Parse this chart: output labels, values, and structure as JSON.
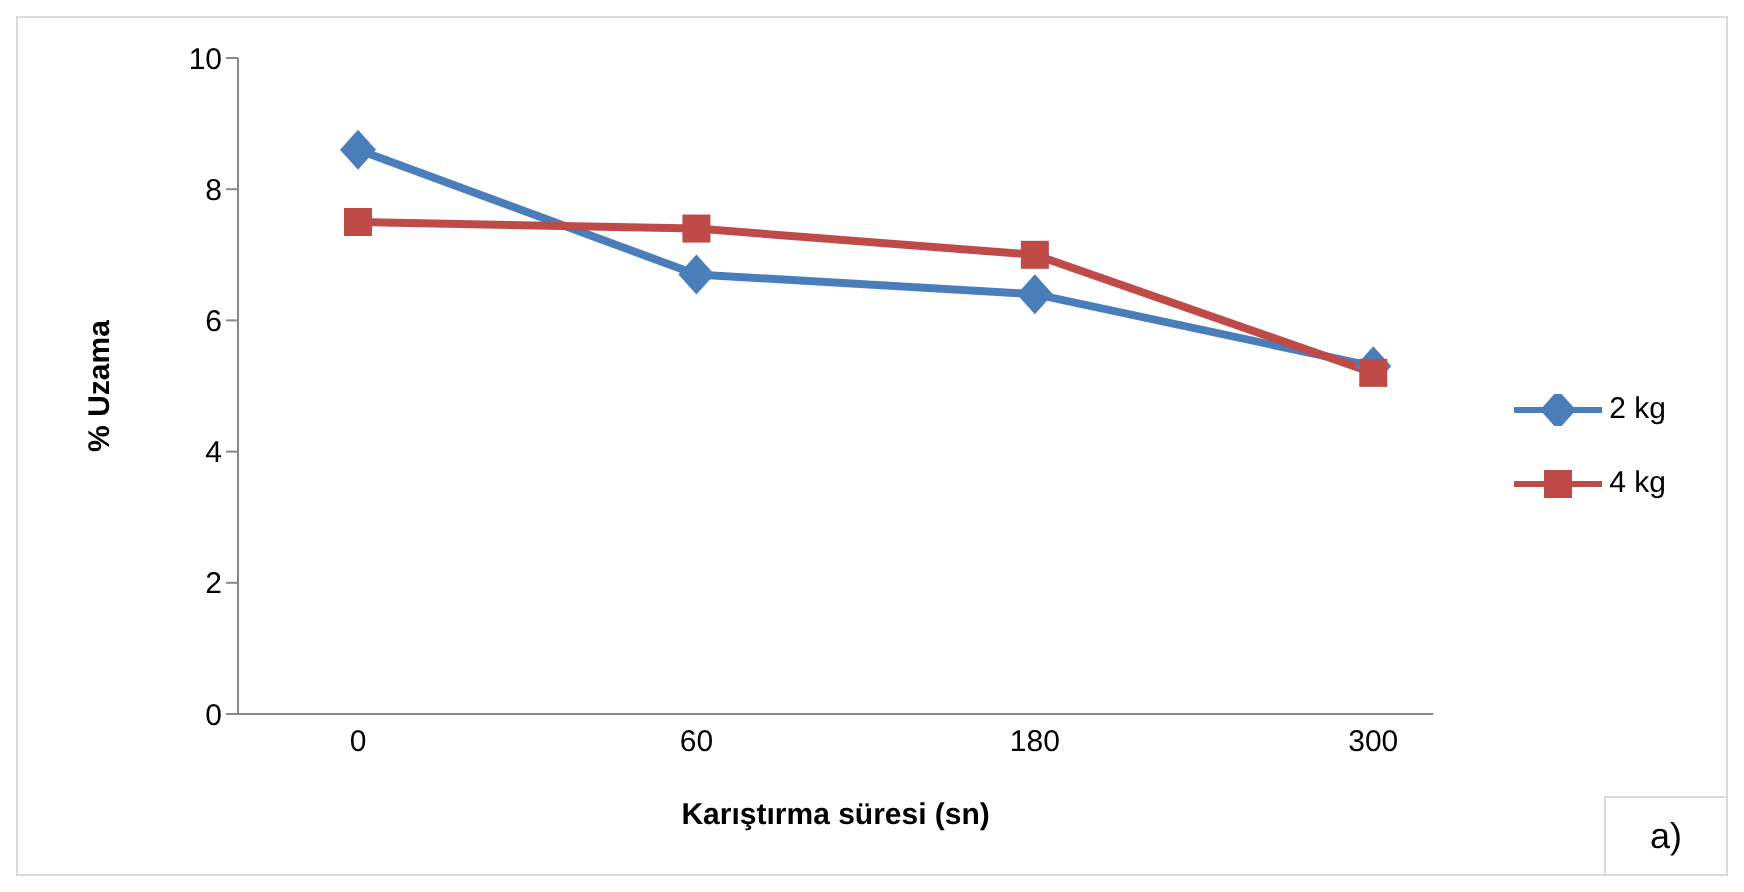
{
  "chart_data": {
    "type": "line",
    "xlabel": "Karıştırma süresi (sn)",
    "ylabel": "% Uzama",
    "categories": [
      "0",
      "60",
      "180",
      "300"
    ],
    "series": [
      {
        "name": "2 kg",
        "color": "#4a7ebb",
        "values": [
          8.6,
          6.7,
          6.4,
          5.3
        ],
        "marker": "diamond"
      },
      {
        "name": "4 kg",
        "color": "#be4b48",
        "values": [
          7.5,
          7.4,
          7.0,
          5.2
        ],
        "marker": "square"
      }
    ],
    "ylim": [
      0,
      10
    ],
    "yticks": [
      0,
      2,
      4,
      6,
      8,
      10
    ],
    "grid": false,
    "legend": "right",
    "line_style": "solid",
    "annotations": [
      "a)"
    ]
  }
}
